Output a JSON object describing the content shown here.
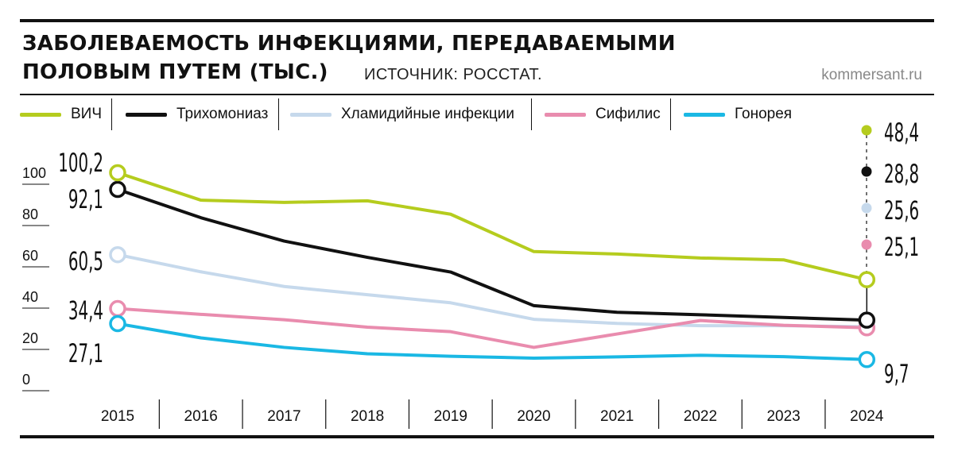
{
  "header": {
    "title_line1": "ЗАБОЛЕВАЕМОСТЬ ИНФЕКЦИЯМИ, ПЕРЕДАВАЕМЫМИ",
    "title_line2": "ПОЛОВЫМ ПУТЕМ (ТЫС.)",
    "source": "ИСТОЧНИК: РОССТАТ.",
    "site": "kommersant.ru"
  },
  "chart_data": {
    "type": "line",
    "title": "ЗАБОЛЕВАЕМОСТЬ ИНФЕКЦИЯМИ, ПЕРЕДАВАЕМЫМИ ПОЛОВЫМ ПУТЕМ (ТЫС.)",
    "x": [
      "2015",
      "2016",
      "2017",
      "2018",
      "2019",
      "2020",
      "2021",
      "2022",
      "2023",
      "2024"
    ],
    "ylim": [
      0,
      110
    ],
    "yticks": [
      0,
      20,
      40,
      60,
      80,
      100
    ],
    "grid": false,
    "legend_position": "top",
    "series": [
      {
        "name": "ВИЧ",
        "color": "#b5cc1e",
        "values": [
          100.2,
          86.9,
          85.8,
          86.6,
          80.1,
          62.0,
          60.8,
          58.9,
          58.0,
          48.4
        ],
        "start_label": "100,2",
        "end_label": "48,4"
      },
      {
        "name": "Трихомониаз",
        "color": "#111111",
        "values": [
          92.1,
          78.4,
          67.1,
          59.2,
          52.1,
          35.8,
          32.6,
          31.4,
          30.1,
          28.8
        ],
        "start_label": "92,1",
        "end_label": "28,8"
      },
      {
        "name": "Хламидийные инфекции",
        "color": "#c6d9ec",
        "values": [
          60.5,
          52.2,
          45.1,
          41.1,
          37.2,
          29.2,
          27.2,
          26.1,
          26.1,
          25.6
        ],
        "start_label": "60,5",
        "end_label": "25,6"
      },
      {
        "name": "Сифилис",
        "color": "#e98cae",
        "values": [
          34.4,
          31.6,
          29.0,
          25.4,
          23.2,
          15.6,
          22.1,
          28.6,
          26.3,
          25.1
        ],
        "start_label": "34,4",
        "end_label": "25,1"
      },
      {
        "name": "Гонорея",
        "color": "#1ab8e4",
        "values": [
          27.1,
          20.2,
          15.6,
          12.5,
          11.3,
          10.4,
          11.0,
          11.8,
          11.1,
          9.7
        ],
        "start_label": "27,1",
        "end_label": "9,7"
      }
    ]
  }
}
